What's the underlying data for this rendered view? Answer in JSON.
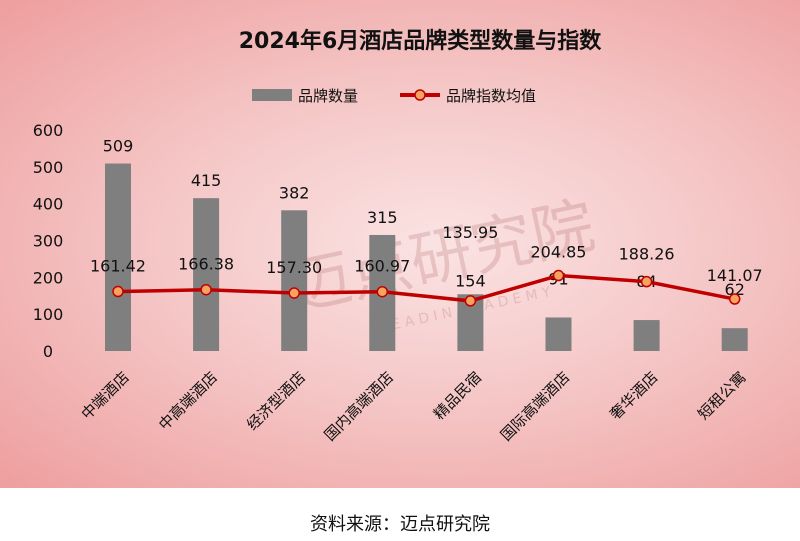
{
  "chart_data": {
    "type": "bar",
    "title": "2024年6月酒店品牌类型数量与指数",
    "categories": [
      "中端酒店",
      "中高端酒店",
      "经济型酒店",
      "国内高端酒店",
      "精品民宿",
      "国际高端酒店",
      "奢华酒店",
      "短租公寓"
    ],
    "series": [
      {
        "name": "品牌数量",
        "type": "bar",
        "values": [
          509,
          415,
          382,
          315,
          154,
          91,
          84,
          62
        ],
        "color": "#7f7f7f"
      },
      {
        "name": "品牌指数均值",
        "type": "line",
        "values": [
          161.42,
          166.38,
          157.3,
          160.97,
          135.95,
          204.85,
          188.26,
          141.07
        ],
        "color": "#c00000",
        "marker_fill": "#f4a460"
      }
    ],
    "bar_labels": [
      "509",
      "415",
      "382",
      "315",
      "154",
      "91",
      "84",
      "62"
    ],
    "line_labels": [
      "161.42",
      "166.38",
      "157.30",
      "160.97",
      "135.95",
      "204.85",
      "188.26",
      "141.07"
    ],
    "yticks": [
      "0",
      "100",
      "200",
      "300",
      "400",
      "500",
      "600"
    ],
    "ylim": [
      0,
      600
    ],
    "legend_position": "top",
    "grid": false
  },
  "watermark": {
    "text": "迈点研究院",
    "subtext": "M E A D I N   A C A D E M Y"
  },
  "source": "资料来源：迈点研究院"
}
